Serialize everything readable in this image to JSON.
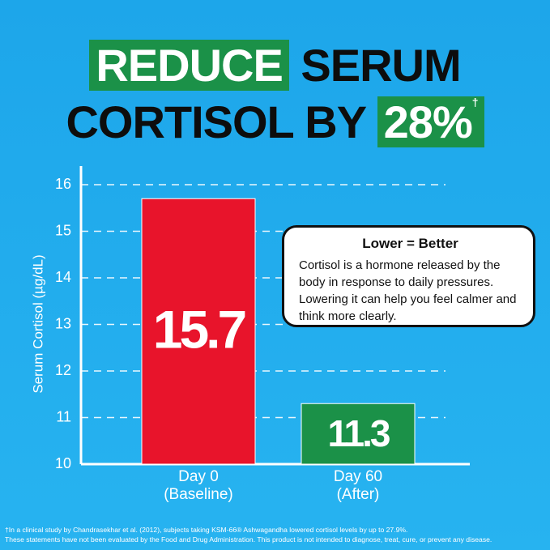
{
  "chart_data": {
    "type": "bar",
    "title": [
      "REDUCE",
      "SERUM",
      "CORTISOL BY",
      "28%"
    ],
    "title_mark": "†",
    "y_label": "Serum Cortisol (µg/dL)",
    "categories": [
      "Day 0 (Baseline)",
      "Day 60 (After)"
    ],
    "values": [
      15.7,
      11.3
    ],
    "colors": [
      "#e8142b",
      "#1b9148"
    ],
    "ylim": [
      10,
      16.4
    ],
    "yticks": [
      10,
      11,
      12,
      13,
      14,
      15,
      16
    ],
    "grid": true,
    "callout": {
      "title": "Lower = Better",
      "text": "Cortisol is a hormone released by the body in response to daily pressures. Lowering it can help you feel calmer and think more clearly."
    },
    "footnotes": [
      "†In a clinical study by Chandrasekhar et al. (2012), subjects taking KSM-66® Ashwagandha lowered cortisol levels by up to 27.9%.",
      "These statements have not been evaluated by the Food and Drug Administration. This product is not intended to diagnose, treat, cure, or prevent any disease."
    ]
  }
}
